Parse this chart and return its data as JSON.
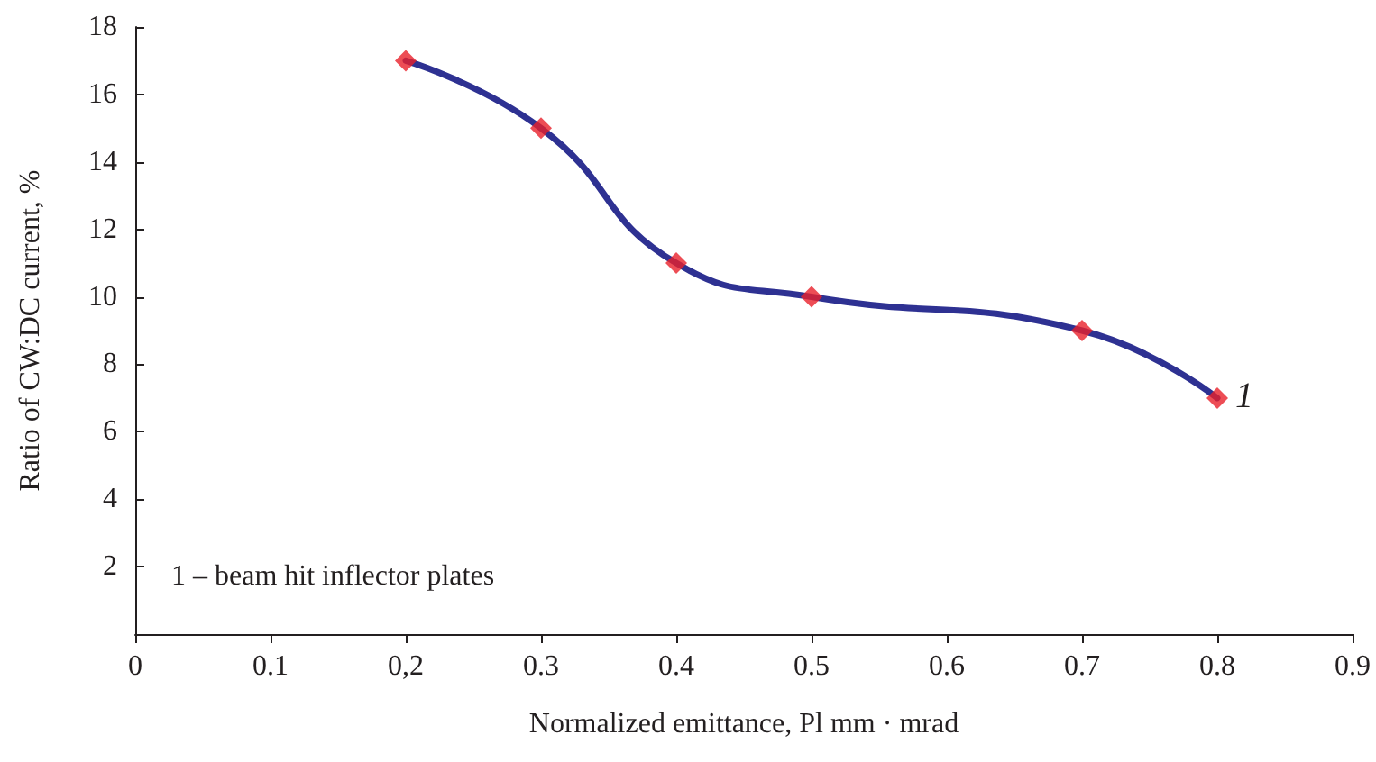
{
  "chart_data": {
    "type": "line",
    "xlabel": "Normalized emittance, Pl mm · mrad",
    "ylabel": "Ratio of CW:DC current, %",
    "series": [
      {
        "type": "line",
        "color": "#2e3192",
        "marker": "none",
        "x": [
          0.2,
          0.3,
          0.4,
          0.5,
          0.7,
          0.8
        ],
        "values": [
          17,
          15,
          11,
          10,
          9,
          7
        ]
      },
      {
        "type": "scatter",
        "color": "#e8202a",
        "marker": "diamond",
        "x": [
          0.2,
          0.3,
          0.4,
          0.5,
          0.7,
          0.8
        ],
        "values": [
          17,
          15,
          11,
          10,
          9,
          7
        ]
      }
    ],
    "xlim": [
      0,
      0.9
    ],
    "xticks": [
      0,
      0.1,
      {
        "value": 0.2,
        "label": "0,2"
      },
      0.3,
      0.4,
      0.5,
      0.6,
      0.7,
      0.8,
      0.9
    ],
    "ylim": [
      0,
      18
    ],
    "yticks": [
      2,
      4,
      6,
      8,
      10,
      12,
      14,
      16,
      18
    ],
    "grid": false,
    "annotations": [
      {
        "text": "1",
        "x": 0.8,
        "y": 7
      },
      "1 – beam hit inflector plates"
    ]
  }
}
